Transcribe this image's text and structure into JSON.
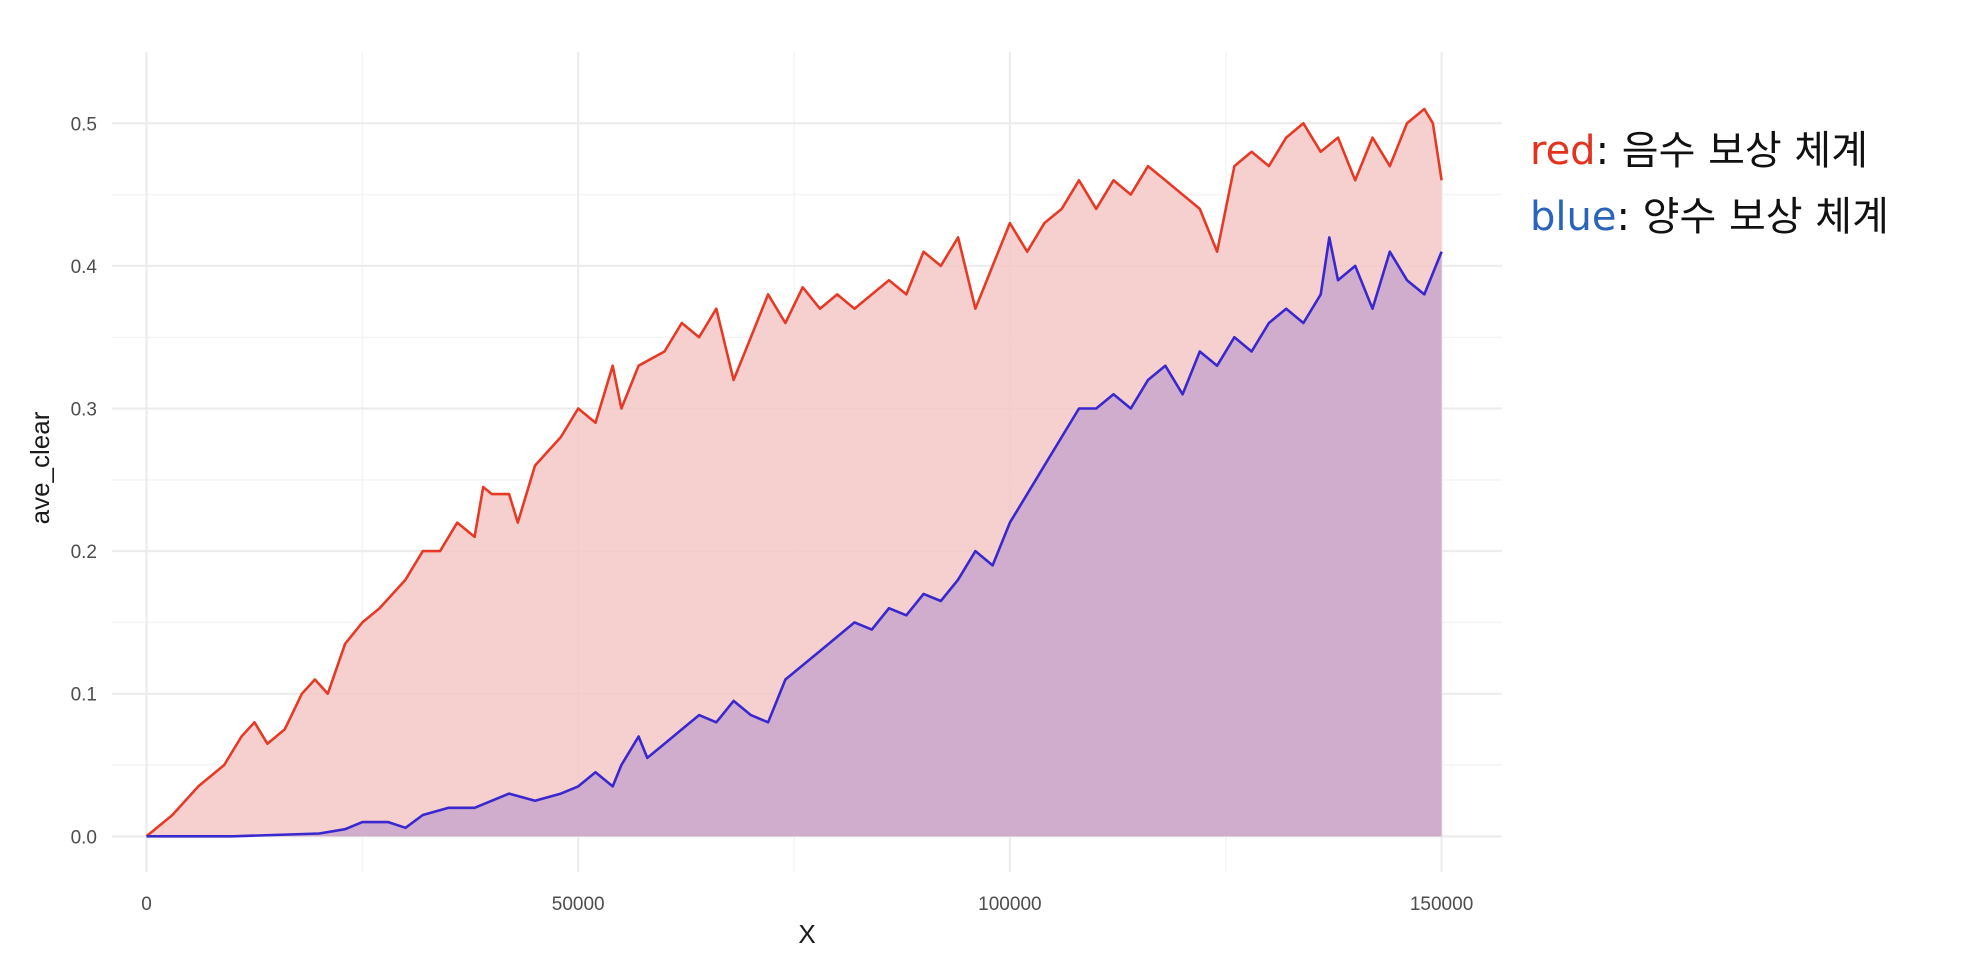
{
  "colors": {
    "red": "#e63a26",
    "blue": "#3a28cf",
    "red_fill": "#f5c8c6",
    "blue_fill": "#c9a6cc",
    "grid_major": "#ebebeb",
    "grid_minor": "#f4f4f4"
  },
  "legend": {
    "red_key": "red",
    "red_sep": ": ",
    "red_text": "음수 보상 체계",
    "blue_key": "blue",
    "blue_sep": ": ",
    "blue_text": "양수 보상 체계"
  },
  "chart_data": {
    "type": "area",
    "title": "",
    "xlabel": "X",
    "ylabel": "ave_clear",
    "xlim": [
      -4000,
      157000
    ],
    "ylim": [
      -0.025,
      0.55
    ],
    "x_ticks": [
      0,
      50000,
      100000,
      150000
    ],
    "x_tick_labels": [
      "0",
      "50000",
      "100000",
      "150000"
    ],
    "y_ticks": [
      0.0,
      0.1,
      0.2,
      0.3,
      0.4,
      0.5
    ],
    "y_tick_labels": [
      "0.0",
      "0.1",
      "0.2",
      "0.3",
      "0.4",
      "0.5"
    ],
    "grid": true,
    "legend_position": "top-right, outside plot",
    "series": [
      {
        "name": "red",
        "color": "red",
        "x": [
          0,
          3000,
          6000,
          9000,
          11000,
          12500,
          14000,
          16000,
          18000,
          19500,
          21000,
          23000,
          25000,
          27000,
          30000,
          32000,
          34000,
          36000,
          38000,
          39000,
          40000,
          42000,
          43000,
          45000,
          48000,
          50000,
          52000,
          54000,
          55000,
          57000,
          60000,
          62000,
          64000,
          66000,
          68000,
          70000,
          72000,
          74000,
          76000,
          78000,
          80000,
          82000,
          84000,
          86000,
          88000,
          90000,
          92000,
          94000,
          96000,
          98000,
          100000,
          102000,
          104000,
          106000,
          108000,
          110000,
          112000,
          114000,
          116000,
          118000,
          120000,
          122000,
          124000,
          126000,
          128000,
          130000,
          132000,
          134000,
          136000,
          138000,
          140000,
          142000,
          144000,
          146000,
          148000,
          149000,
          150000
        ],
        "y": [
          0.0,
          0.015,
          0.035,
          0.05,
          0.07,
          0.08,
          0.065,
          0.075,
          0.1,
          0.11,
          0.1,
          0.135,
          0.15,
          0.16,
          0.18,
          0.2,
          0.2,
          0.22,
          0.21,
          0.245,
          0.24,
          0.24,
          0.22,
          0.26,
          0.28,
          0.3,
          0.29,
          0.33,
          0.3,
          0.33,
          0.34,
          0.36,
          0.35,
          0.37,
          0.32,
          0.35,
          0.38,
          0.36,
          0.385,
          0.37,
          0.38,
          0.37,
          0.38,
          0.39,
          0.38,
          0.41,
          0.4,
          0.42,
          0.37,
          0.4,
          0.43,
          0.41,
          0.43,
          0.44,
          0.46,
          0.44,
          0.46,
          0.45,
          0.47,
          0.46,
          0.45,
          0.44,
          0.41,
          0.47,
          0.48,
          0.47,
          0.49,
          0.5,
          0.48,
          0.49,
          0.46,
          0.49,
          0.47,
          0.5,
          0.51,
          0.5,
          0.46
        ]
      },
      {
        "name": "blue",
        "color": "blue",
        "x": [
          0,
          10000,
          20000,
          23000,
          25000,
          28000,
          30000,
          32000,
          35000,
          38000,
          40000,
          42000,
          45000,
          48000,
          50000,
          52000,
          54000,
          55000,
          57000,
          58000,
          60000,
          62000,
          64000,
          66000,
          68000,
          70000,
          72000,
          74000,
          76000,
          78000,
          80000,
          82000,
          84000,
          86000,
          88000,
          90000,
          92000,
          94000,
          96000,
          98000,
          100000,
          102000,
          104000,
          106000,
          108000,
          110000,
          112000,
          114000,
          116000,
          118000,
          120000,
          122000,
          124000,
          126000,
          128000,
          130000,
          132000,
          134000,
          136000,
          137000,
          138000,
          140000,
          142000,
          144000,
          146000,
          148000,
          150000
        ],
        "y": [
          0.0,
          0.0,
          0.002,
          0.005,
          0.01,
          0.01,
          0.006,
          0.015,
          0.02,
          0.02,
          0.025,
          0.03,
          0.025,
          0.03,
          0.035,
          0.045,
          0.035,
          0.05,
          0.07,
          0.055,
          0.065,
          0.075,
          0.085,
          0.08,
          0.095,
          0.085,
          0.08,
          0.11,
          0.12,
          0.13,
          0.14,
          0.15,
          0.145,
          0.16,
          0.155,
          0.17,
          0.165,
          0.18,
          0.2,
          0.19,
          0.22,
          0.24,
          0.26,
          0.28,
          0.3,
          0.3,
          0.31,
          0.3,
          0.32,
          0.33,
          0.31,
          0.34,
          0.33,
          0.35,
          0.34,
          0.36,
          0.37,
          0.36,
          0.38,
          0.42,
          0.39,
          0.4,
          0.37,
          0.41,
          0.39,
          0.38,
          0.41
        ]
      }
    ]
  }
}
